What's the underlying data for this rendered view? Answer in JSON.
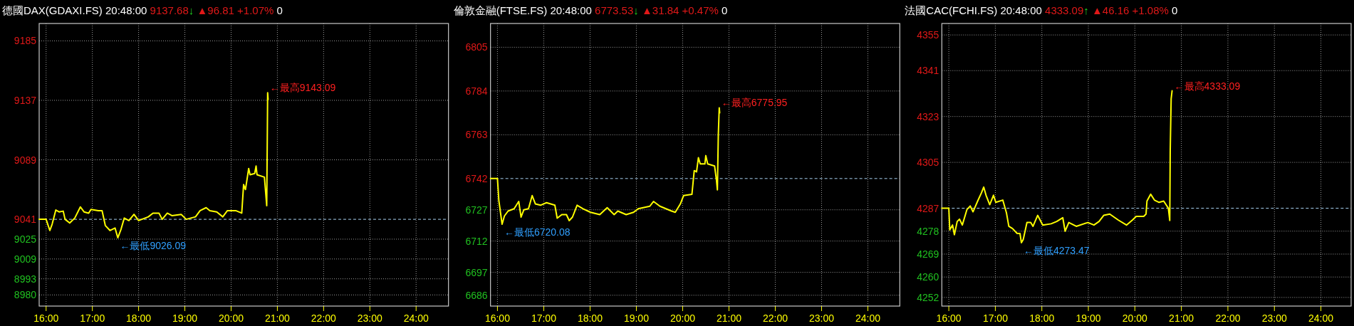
{
  "chart_data": [
    {
      "type": "line",
      "title": "德國DAX(GDAXI.FS) 20:48:00",
      "subtitle": "9137.68↓ ▲96.81 +1.07% 0",
      "x": [
        15.85,
        16.0,
        16.08,
        16.13,
        16.21,
        16.28,
        16.37,
        16.41,
        16.51,
        16.62,
        16.74,
        16.82,
        16.92,
        16.97,
        17.13,
        17.21,
        17.28,
        17.38,
        17.49,
        17.55,
        17.62,
        17.69,
        17.79,
        17.9,
        18.0,
        18.21,
        18.31,
        18.44,
        18.51,
        18.62,
        18.72,
        18.92,
        19.03,
        19.23,
        19.33,
        19.46,
        19.54,
        19.69,
        19.82,
        19.92,
        20.1,
        20.23,
        20.27,
        20.31,
        20.36,
        20.38,
        20.41,
        20.51,
        20.54,
        20.56,
        20.72,
        20.77,
        20.78,
        20.79,
        20.8
      ],
      "series": [
        {
          "color": "#ffff00",
          "values": [
            9041,
            9041,
            9032,
            9037,
            9048.5,
            9047,
            9047.6,
            9041,
            9038,
            9042,
            9051,
            9047,
            9046,
            9049,
            9048,
            9048,
            9036,
            9032,
            9034,
            9026.09,
            9033,
            9042,
            9040,
            9045,
            9040,
            9043,
            9046,
            9046,
            9041,
            9046,
            9044,
            9045,
            9041,
            9043,
            9048,
            9050.4,
            9048,
            9047,
            9043,
            9048,
            9048,
            9046,
            9069,
            9065,
            9077,
            9082,
            9077,
            9078,
            9084,
            9077,
            9075,
            9052,
            9097,
            9143.09,
            9137.68
          ]
        }
      ],
      "xlim": [
        15.85,
        24.7
      ],
      "ylim": [
        8971,
        9199
      ],
      "xticks": [
        {
          "value": 16,
          "label": "16:00"
        },
        {
          "value": 17,
          "label": "17:00"
        },
        {
          "value": 18,
          "label": "18:00"
        },
        {
          "value": 19,
          "label": "19:00"
        },
        {
          "value": 20,
          "label": "20:00"
        },
        {
          "value": 21,
          "label": "21:00"
        },
        {
          "value": 22,
          "label": "22:00"
        },
        {
          "value": 23,
          "label": "23:00"
        },
        {
          "value": 24,
          "label": "24:00"
        }
      ],
      "yticks": [
        9185,
        9137,
        9089,
        9041,
        9025,
        9009,
        8993,
        8980
      ],
      "grid": true,
      "ref_lines": [
        {
          "axis": "y",
          "value": 9041,
          "color": "#a8d0f0",
          "line_style": "dashed"
        }
      ],
      "annotations": [
        {
          "text": "←最高9143.09",
          "x": 20.79,
          "y": 9143.09
        },
        {
          "text": "←最低9026.09",
          "x": 17.55,
          "y": 9026.09
        }
      ]
    },
    {
      "type": "line",
      "title": "倫敦金融(FTSE.FS) 20:48:00",
      "subtitle": "6773.53↓ ▲31.84 +0.47% 0",
      "x": [
        15.85,
        16.0,
        16.03,
        16.1,
        16.15,
        16.23,
        16.36,
        16.46,
        16.51,
        16.57,
        16.67,
        16.75,
        16.82,
        16.93,
        17.06,
        17.24,
        17.29,
        17.39,
        17.49,
        17.55,
        17.62,
        17.72,
        17.85,
        18.01,
        18.21,
        18.37,
        18.52,
        18.6,
        18.78,
        18.94,
        19.04,
        19.29,
        19.37,
        19.51,
        19.76,
        19.84,
        19.95,
        20.02,
        20.2,
        20.25,
        20.3,
        20.34,
        20.38,
        20.48,
        20.5,
        20.54,
        20.69,
        20.73,
        20.75,
        20.77,
        20.79,
        20.8
      ],
      "series": [
        {
          "color": "#ffff00",
          "values": [
            6742,
            6742,
            6731.5,
            6720.08,
            6724,
            6726.4,
            6727.5,
            6731,
            6723.5,
            6727,
            6727.5,
            6733.8,
            6729.8,
            6729.2,
            6730.4,
            6729.2,
            6723,
            6724.7,
            6724.7,
            6721.8,
            6723.5,
            6729.2,
            6727.5,
            6725.8,
            6724.7,
            6728,
            6724.7,
            6726.4,
            6724.7,
            6725.8,
            6727.5,
            6728.7,
            6731,
            6728.7,
            6726.4,
            6725.8,
            6729.8,
            6733.8,
            6734.4,
            6745.8,
            6745.2,
            6752,
            6749,
            6749,
            6753,
            6749,
            6748,
            6741.2,
            6736.6,
            6762.9,
            6775.95,
            6773.53
          ]
        }
      ],
      "xlim": [
        15.85,
        24.69
      ],
      "ylim": [
        6680.8,
        6816.4
      ],
      "xticks": [
        {
          "value": 16,
          "label": "16:00"
        },
        {
          "value": 17,
          "label": "17:00"
        },
        {
          "value": 18,
          "label": "18:00"
        },
        {
          "value": 19,
          "label": "19:00"
        },
        {
          "value": 20,
          "label": "20:00"
        },
        {
          "value": 21,
          "label": "21:00"
        },
        {
          "value": 22,
          "label": "22:00"
        },
        {
          "value": 23,
          "label": "23:00"
        },
        {
          "value": 24,
          "label": "24:00"
        }
      ],
      "yticks": [
        6805,
        6784,
        6763,
        6742,
        6727,
        6712,
        6697,
        6686
      ],
      "grid": true,
      "ref_lines": [
        {
          "axis": "y",
          "value": 6742,
          "color": "#a8d0f0",
          "line_style": "dashed"
        }
      ],
      "annotations": [
        {
          "text": "←最高6775.95",
          "x": 20.79,
          "y": 6775.95
        },
        {
          "text": "←最低6720.08",
          "x": 16.1,
          "y": 6720.08
        }
      ]
    },
    {
      "type": "line",
      "title": "法國CAC(FCHI.FS) 20:48:00",
      "subtitle": "4333.09↑ ▲46.16 +1.08% 0",
      "x": [
        15.85,
        16.0,
        16.02,
        16.08,
        16.12,
        16.18,
        16.23,
        16.29,
        16.39,
        16.46,
        16.52,
        16.62,
        16.7,
        16.75,
        16.8,
        16.88,
        16.96,
        17.01,
        17.16,
        17.24,
        17.29,
        17.37,
        17.47,
        17.53,
        17.56,
        17.6,
        17.68,
        17.76,
        17.81,
        17.91,
        18.02,
        18.2,
        18.32,
        18.45,
        18.5,
        18.58,
        18.74,
        18.99,
        19.12,
        19.23,
        19.33,
        19.46,
        19.64,
        19.82,
        19.95,
        20.03,
        20.19,
        20.24,
        20.26,
        20.34,
        20.42,
        20.52,
        20.62,
        20.72,
        20.75,
        20.76,
        20.78,
        20.8
      ],
      "series": [
        {
          "color": "#ffff00",
          "values": [
            4287,
            4287,
            4278.5,
            4280.4,
            4276.6,
            4281.8,
            4282.7,
            4280.4,
            4286.5,
            4287.9,
            4285.6,
            4289.8,
            4293,
            4295.3,
            4292.1,
            4288.4,
            4292.1,
            4289.3,
            4290.2,
            4285.1,
            4279.9,
            4279,
            4277.1,
            4277.1,
            4273.47,
            4274.7,
            4281.4,
            4281.4,
            4279.9,
            4284.2,
            4280.4,
            4280.9,
            4281.8,
            4283.3,
            4278,
            4281.4,
            4279.9,
            4281.4,
            4280.4,
            4281.8,
            4284.2,
            4284.7,
            4282.4,
            4280.4,
            4282.4,
            4283.8,
            4283.8,
            4284.7,
            4289.8,
            4292.5,
            4290.2,
            4289.3,
            4289.8,
            4287,
            4282.2,
            4309.6,
            4329.9,
            4333.09
          ]
        }
      ],
      "xlim": [
        15.85,
        24.65
      ],
      "ylim": [
        4248.6,
        4359.5
      ],
      "xticks": [
        {
          "value": 16,
          "label": "16:00"
        },
        {
          "value": 17,
          "label": "17:00"
        },
        {
          "value": 18,
          "label": "18:00"
        },
        {
          "value": 19,
          "label": "19:00"
        },
        {
          "value": 20,
          "label": "20:00"
        },
        {
          "value": 21,
          "label": "21:00"
        },
        {
          "value": 22,
          "label": "22:00"
        },
        {
          "value": 23,
          "label": "23:00"
        },
        {
          "value": 24,
          "label": "24:00"
        }
      ],
      "yticks": [
        4355,
        4341,
        4323,
        4305,
        4287,
        4278,
        4269,
        4260,
        4252
      ],
      "grid": true,
      "ref_lines": [
        {
          "axis": "y",
          "value": 4287,
          "color": "#a8d0f0",
          "line_style": "dashed"
        }
      ],
      "annotations": [
        {
          "text": "←最高4333.09",
          "x": 20.8,
          "y": 4333.09
        },
        {
          "text": "←最低4273.47",
          "x": 17.56,
          "y": 4273.47
        }
      ]
    }
  ]
}
